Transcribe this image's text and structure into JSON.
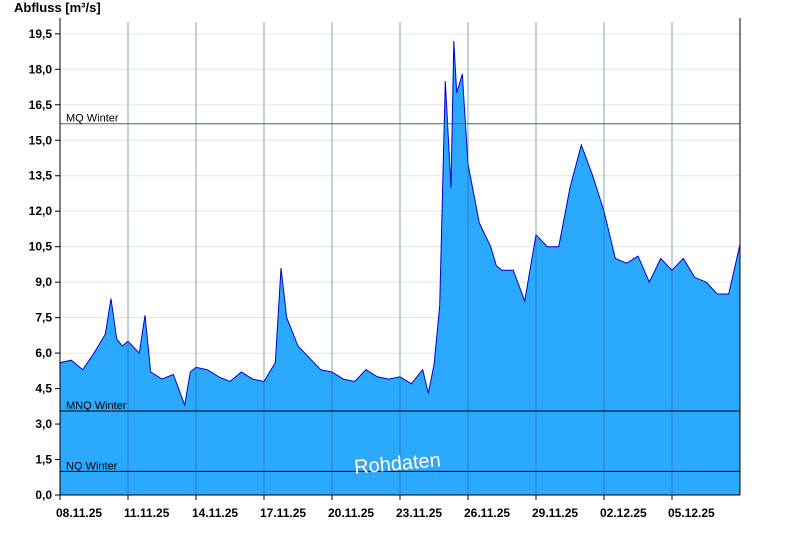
{
  "chart_data": {
    "type": "area",
    "ylabel": "Abfluss [m³/s]",
    "ylim": [
      0,
      20
    ],
    "yticks": [
      "0,0",
      "1,5",
      "3,0",
      "4,5",
      "6,0",
      "7,5",
      "9,0",
      "10,5",
      "12,0",
      "13,5",
      "15,0",
      "16,5",
      "18,0",
      "19,5"
    ],
    "xticks": [
      "08.11.25",
      "11.11.25",
      "14.11.25",
      "17.11.25",
      "20.11.25",
      "23.11.25",
      "26.11.25",
      "29.11.25",
      "02.12.25",
      "05.12.25"
    ],
    "x_start": "2025-11-08",
    "x_end": "2025-12-08",
    "grid": true,
    "colors": {
      "fill": "#2aa9ff",
      "line": "#0000cc",
      "mq": "#2e7d32",
      "ref": "#000000"
    },
    "reference_lines": [
      {
        "label": "MQ Winter",
        "value": 15.7
      },
      {
        "label": "MNQ Winter",
        "value": 3.55
      },
      {
        "label": "NQ Winter",
        "value": 1.0
      }
    ],
    "watermark": "Rohdaten",
    "series": [
      {
        "x": [
          "2025-11-08",
          "2025-11-08T12:00",
          "2025-11-09",
          "2025-11-09T12:00",
          "2025-11-10",
          "2025-11-10T06:00",
          "2025-11-10T12:00",
          "2025-11-10T18:00",
          "2025-11-11",
          "2025-11-11T12:00",
          "2025-11-11T18:00",
          "2025-11-12",
          "2025-11-12T12:00",
          "2025-11-13",
          "2025-11-13T12:00",
          "2025-11-13T18:00",
          "2025-11-14",
          "2025-11-14T12:00",
          "2025-11-15",
          "2025-11-15T12:00",
          "2025-11-16",
          "2025-11-16T12:00",
          "2025-11-17",
          "2025-11-17T12:00",
          "2025-11-17T18:00",
          "2025-11-18",
          "2025-11-18T12:00",
          "2025-11-19",
          "2025-11-19T12:00",
          "2025-11-20",
          "2025-11-20T12:00",
          "2025-11-21",
          "2025-11-21T12:00",
          "2025-11-22",
          "2025-11-22T12:00",
          "2025-11-23",
          "2025-11-23T12:00",
          "2025-11-24",
          "2025-11-24T06:00",
          "2025-11-24T12:00",
          "2025-11-24T18:00",
          "2025-11-25",
          "2025-11-25T06:00",
          "2025-11-25T09:00",
          "2025-11-25T12:00",
          "2025-11-25T18:00",
          "2025-11-26",
          "2025-11-26T12:00",
          "2025-11-27",
          "2025-11-27T06:00",
          "2025-11-27T12:00",
          "2025-11-28",
          "2025-11-28T12:00",
          "2025-11-29",
          "2025-11-29T12:00",
          "2025-11-30",
          "2025-11-30T12:00",
          "2025-12-01",
          "2025-12-01T12:00",
          "2025-12-02",
          "2025-12-02T12:00",
          "2025-12-03",
          "2025-12-03T12:00",
          "2025-12-04",
          "2025-12-04T12:00",
          "2025-12-05",
          "2025-12-05T12:00",
          "2025-12-06",
          "2025-12-06T12:00",
          "2025-12-07",
          "2025-12-07T12:00",
          "2025-12-08"
        ],
        "values": [
          5.6,
          5.7,
          5.3,
          6.0,
          6.8,
          8.3,
          6.6,
          6.3,
          6.5,
          6.0,
          7.6,
          5.2,
          4.9,
          5.1,
          3.8,
          5.2,
          5.4,
          5.3,
          5.0,
          4.8,
          5.2,
          4.9,
          4.8,
          5.6,
          9.6,
          7.5,
          6.3,
          5.8,
          5.3,
          5.2,
          4.9,
          4.8,
          5.3,
          5.0,
          4.9,
          5.0,
          4.7,
          5.3,
          4.3,
          5.5,
          8.0,
          17.5,
          13.0,
          19.2,
          17.0,
          17.8,
          14.0,
          11.5,
          10.5,
          9.7,
          9.5,
          9.5,
          8.2,
          11.0,
          10.5,
          10.5,
          13.0,
          14.8,
          13.5,
          12.0,
          10.0,
          9.8,
          10.1,
          9.0,
          10.0,
          9.5,
          10.0,
          9.2,
          9.0,
          8.5,
          8.5,
          10.6
        ]
      }
    ]
  }
}
